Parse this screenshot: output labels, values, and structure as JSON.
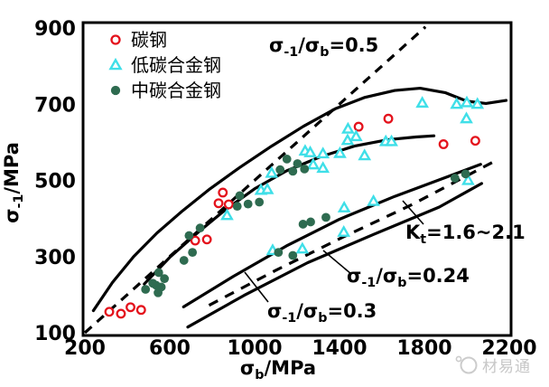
{
  "watermark": {
    "text": "材易通"
  },
  "chart_data": {
    "type": "scatter",
    "title": "",
    "xlabel": "σ{b}/MPa",
    "ylabel": "σ{-1}/MPa",
    "xlim": [
      200,
      2200
    ],
    "ylim": [
      100,
      900
    ],
    "xticks": [
      200,
      600,
      1000,
      1400,
      1800,
      2200
    ],
    "yticks": [
      100,
      300,
      500,
      700,
      900
    ],
    "grid": false,
    "legend_position": "top-left",
    "colors": {
      "carbon_steel": "#e4121c",
      "low_carbon_alloy": "#3fdfe8",
      "medium_carbon_alloy": "#2e6b50",
      "line": "#000000",
      "watermark": "#c7c7c7"
    },
    "legend": [
      {
        "label": "碳钢",
        "marker": "open-circle",
        "color": "#e4121c"
      },
      {
        "label": "低碳合金钢",
        "marker": "open-triangle",
        "color": "#3fdfe8"
      },
      {
        "label": "中碳合金钢",
        "marker": "filled-circle",
        "color": "#2e6b50"
      }
    ],
    "series": [
      {
        "name": "碳钢",
        "marker": "open-circle",
        "color": "#e4121c",
        "points": [
          [
            315,
            155
          ],
          [
            370,
            150
          ],
          [
            415,
            167
          ],
          [
            465,
            160
          ],
          [
            720,
            342
          ],
          [
            775,
            345
          ],
          [
            830,
            440
          ],
          [
            850,
            468
          ],
          [
            878,
            437
          ],
          [
            1490,
            641
          ],
          [
            1630,
            662
          ],
          [
            1890,
            595
          ],
          [
            2040,
            604
          ]
        ]
      },
      {
        "name": "低碳合金钢",
        "marker": "open-triangle",
        "color": "#3fdfe8",
        "points": [
          [
            870,
            408
          ],
          [
            1030,
            474
          ],
          [
            1060,
            476
          ],
          [
            1080,
            519
          ],
          [
            1085,
            316
          ],
          [
            1225,
            320
          ],
          [
            1238,
            577
          ],
          [
            1262,
            573
          ],
          [
            1276,
            541
          ],
          [
            1322,
            570
          ],
          [
            1322,
            532
          ],
          [
            1402,
            571
          ],
          [
            1420,
            364
          ],
          [
            1422,
            428
          ],
          [
            1438,
            605
          ],
          [
            1440,
            635
          ],
          [
            1478,
            615
          ],
          [
            1518,
            565
          ],
          [
            1560,
            445
          ],
          [
            1618,
            602
          ],
          [
            1645,
            602
          ],
          [
            1790,
            703
          ],
          [
            1952,
            700
          ],
          [
            1998,
            662
          ],
          [
            2000,
            704
          ],
          [
            2006,
            500
          ],
          [
            2050,
            700
          ]
        ]
      },
      {
        "name": "中碳合金钢",
        "marker": "filled-circle",
        "color": "#2e6b50",
        "points": [
          [
            486,
            214
          ],
          [
            520,
            230
          ],
          [
            545,
            205
          ],
          [
            548,
            258
          ],
          [
            575,
            242
          ],
          [
            535,
            225
          ],
          [
            560,
            220
          ],
          [
            667,
            290
          ],
          [
            707,
            311
          ],
          [
            691,
            355
          ],
          [
            743,
            375
          ],
          [
            918,
            432
          ],
          [
            969,
            438
          ],
          [
            1022,
            443
          ],
          [
            930,
            460
          ],
          [
            1120,
            528
          ],
          [
            1152,
            556
          ],
          [
            1180,
            524
          ],
          [
            1202,
            544
          ],
          [
            1235,
            530
          ],
          [
            1112,
            311
          ],
          [
            1180,
            303
          ],
          [
            1228,
            385
          ],
          [
            1264,
            391
          ],
          [
            1336,
            403
          ],
          [
            1944,
            506
          ],
          [
            1994,
            517
          ]
        ]
      }
    ],
    "curves": [
      {
        "name": "upper-bound-curve",
        "points": [
          [
            240,
            158
          ],
          [
            330,
            232
          ],
          [
            430,
            300
          ],
          [
            540,
            362
          ],
          [
            660,
            420
          ],
          [
            790,
            478
          ],
          [
            930,
            534
          ],
          [
            1080,
            590
          ],
          [
            1230,
            642
          ],
          [
            1380,
            688
          ],
          [
            1520,
            718
          ],
          [
            1660,
            736
          ],
          [
            1780,
            742
          ],
          [
            1900,
            730
          ],
          [
            2000,
            708
          ],
          [
            2090,
            702
          ],
          [
            2185,
            710
          ]
        ]
      },
      {
        "name": "middle-bound-curve",
        "points": [
          [
            480,
            228
          ],
          [
            600,
            298
          ],
          [
            730,
            362
          ],
          [
            860,
            422
          ],
          [
            1000,
            478
          ],
          [
            1150,
            525
          ],
          [
            1310,
            562
          ],
          [
            1470,
            590
          ],
          [
            1630,
            607
          ],
          [
            1760,
            614
          ],
          [
            1845,
            617
          ]
        ]
      },
      {
        "name": "notched-band-upper-line",
        "points": [
          [
            665,
            168
          ],
          [
            900,
            248
          ],
          [
            1150,
            328
          ],
          [
            1400,
            398
          ],
          [
            1660,
            458
          ],
          [
            1920,
            512
          ],
          [
            2065,
            542
          ]
        ]
      },
      {
        "name": "notched-band-lower-line",
        "points": [
          [
            685,
            115
          ],
          [
            950,
            198
          ],
          [
            1250,
            284
          ],
          [
            1560,
            358
          ],
          [
            1870,
            430
          ],
          [
            2070,
            492
          ]
        ]
      }
    ],
    "dashed_lines": [
      {
        "name": "ratio-0.5-line",
        "points": [
          [
            200,
            100
          ],
          [
            1805,
            903
          ]
        ]
      },
      {
        "name": "ratio-0.24-line",
        "points": [
          [
            785,
            172
          ],
          [
            1100,
            264
          ],
          [
            1420,
            352
          ],
          [
            1740,
            436
          ],
          [
            2150,
            556
          ]
        ]
      }
    ],
    "annotations": [
      {
        "id": "label-ratio-05",
        "text": "σ{-1}/σ{b}=0.5",
        "px": [
          298,
          57
        ]
      },
      {
        "id": "label-kt",
        "text": "K{t}=1.6~2.1",
        "px": [
          449,
          264
        ]
      },
      {
        "id": "label-ratio-024",
        "text": "σ{-1}/σ{b}=0.24",
        "px": [
          384,
          312
        ]
      },
      {
        "id": "label-ratio-03",
        "text": "σ{-1}/σ{b}=0.3",
        "px": [
          296,
          351
        ]
      }
    ],
    "leader_lines": [
      {
        "name": "leader-ratio-03",
        "px": [
          [
            271,
            301
          ],
          [
            297,
            334
          ]
        ]
      },
      {
        "name": "leader-ratio-024",
        "px": [
          [
            358,
            277
          ],
          [
            389,
            303
          ]
        ]
      },
      {
        "name": "leader-kt",
        "px": [
          [
            446,
            222
          ],
          [
            469,
            248
          ]
        ]
      }
    ]
  }
}
